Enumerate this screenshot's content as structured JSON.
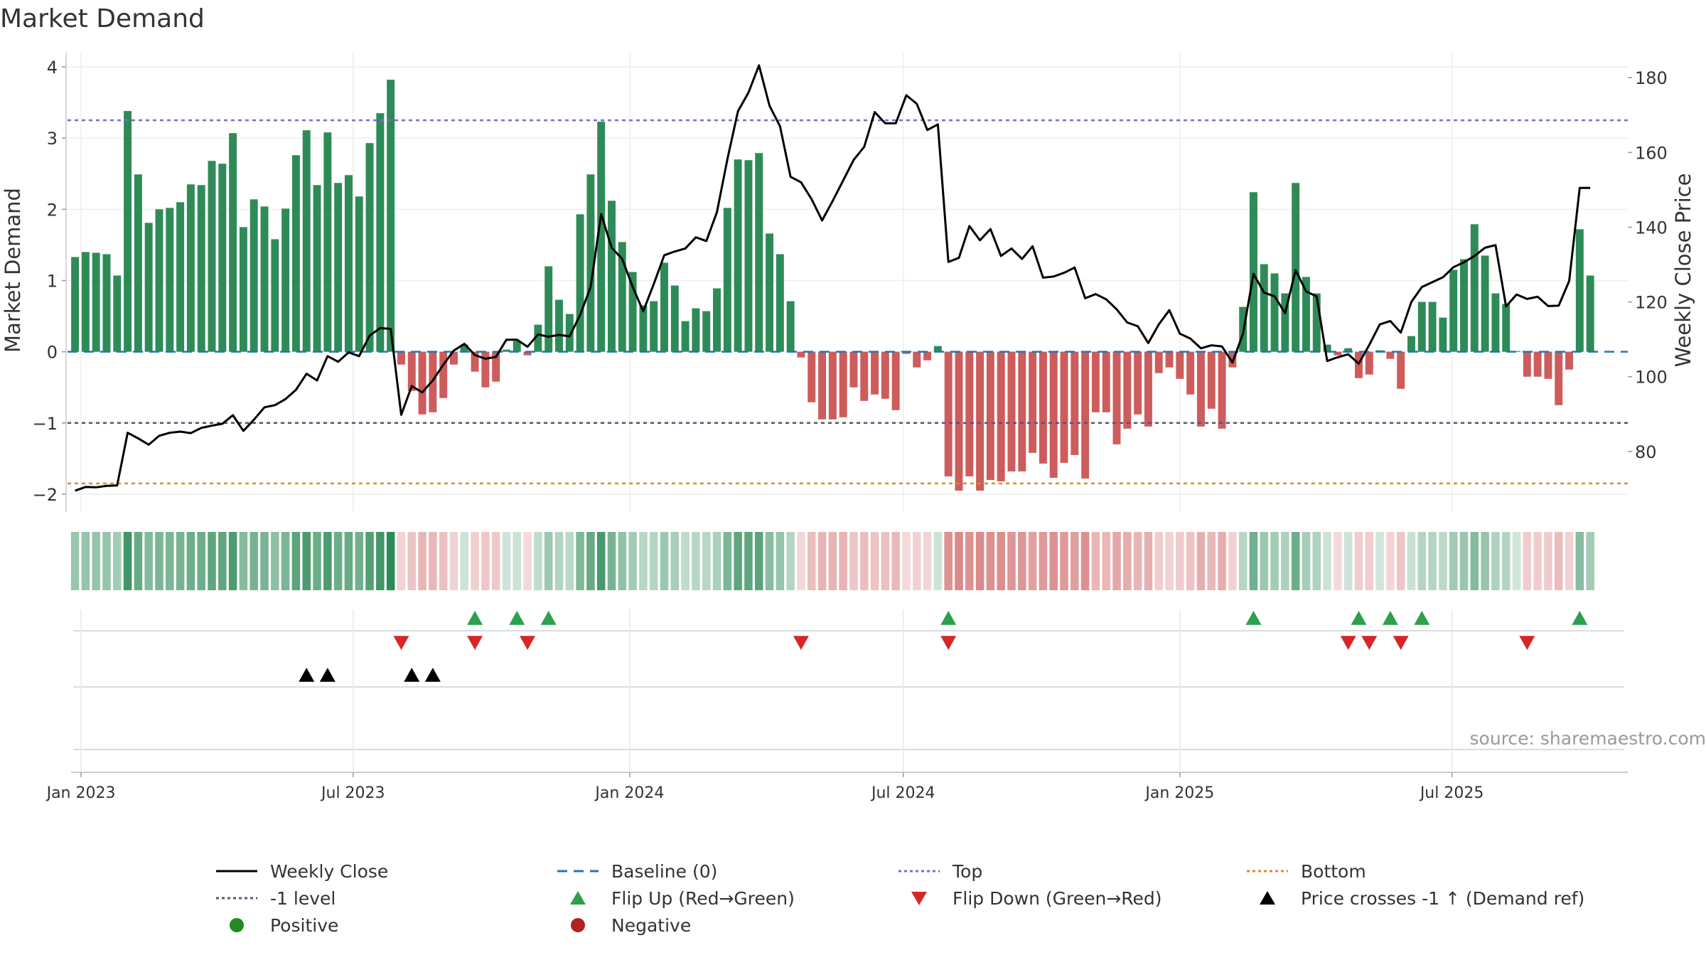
{
  "title": "Market Demand",
  "source": "source: sharemaestro.com",
  "chart_data": {
    "type": "bar",
    "y_left_label": "Market Demand",
    "y_right_label": "Weekly Close Price",
    "y_left_ticks": [
      -2,
      -1,
      0,
      1,
      2,
      3,
      4
    ],
    "y_left_tick_labels": [
      "−2",
      "−1",
      "0",
      "1",
      "2",
      "3",
      "4"
    ],
    "y_left_range": [
      -2.25,
      4.1
    ],
    "y_right_ticks": [
      80,
      100,
      120,
      140,
      160,
      180
    ],
    "y_right_range": [
      63.8,
      184.8
    ],
    "x_ticks": [
      {
        "date": "2023-01-01",
        "label": "Jan 2023"
      },
      {
        "date": "2023-07-01",
        "label": "Jul 2023"
      },
      {
        "date": "2024-01-01",
        "label": "Jan 2024"
      },
      {
        "date": "2024-07-01",
        "label": "Jul 2024"
      },
      {
        "date": "2025-01-01",
        "label": "Jan 2025"
      },
      {
        "date": "2025-07-01",
        "label": "Jul 2025"
      }
    ],
    "x_start": "2022-12-28",
    "week_step_days": 7,
    "x_range": [
      "2022-12-23",
      "2025-10-26"
    ],
    "reference_lines": {
      "top": 3.25,
      "bottom": -1.85,
      "minus_one": -1,
      "baseline": 0
    },
    "demand": [
      1.33,
      1.4,
      1.39,
      1.37,
      1.07,
      3.38,
      2.49,
      1.81,
      2.0,
      2.02,
      2.1,
      2.35,
      2.34,
      2.68,
      2.64,
      3.07,
      1.75,
      2.14,
      2.04,
      1.58,
      2.01,
      2.76,
      3.11,
      2.34,
      3.08,
      2.37,
      2.48,
      2.18,
      2.93,
      3.35,
      3.82,
      -0.18,
      -0.55,
      -0.88,
      -0.85,
      -0.65,
      -0.18,
      0.1,
      -0.28,
      -0.5,
      -0.42,
      0.03,
      0.15,
      -0.05,
      0.38,
      1.2,
      0.73,
      0.53,
      1.93,
      2.49,
      3.23,
      2.12,
      1.54,
      1.12,
      0.65,
      0.71,
      1.25,
      0.93,
      0.43,
      0.61,
      0.57,
      0.89,
      2.02,
      2.7,
      2.69,
      2.79,
      1.66,
      1.37,
      0.71,
      -0.08,
      -0.71,
      -0.95,
      -0.95,
      -0.92,
      -0.5,
      -0.69,
      -0.6,
      -0.66,
      -0.82,
      -0.03,
      -0.22,
      -0.12,
      0.08,
      -1.75,
      -1.95,
      -1.75,
      -1.95,
      -1.8,
      -1.82,
      -1.68,
      -1.68,
      -1.42,
      -1.57,
      -1.77,
      -1.56,
      -1.45,
      -1.78,
      -0.85,
      -0.85,
      -1.3,
      -1.08,
      -0.88,
      -1.05,
      -0.3,
      -0.22,
      -0.38,
      -0.6,
      -1.05,
      -0.8,
      -1.08,
      -0.22,
      0.63,
      2.24,
      1.23,
      1.1,
      0.82,
      2.37,
      1.05,
      0.82,
      0.1,
      -0.05,
      0.05,
      -0.37,
      -0.32,
      0.02,
      -0.1,
      -0.52,
      0.22,
      0.7,
      0.7,
      0.48,
      1.15,
      1.3,
      1.79,
      1.35,
      0.82,
      0.67,
      0.01,
      -0.35,
      -0.35,
      -0.38,
      -0.75,
      -0.25,
      1.72,
      1.07
    ],
    "close": [
      69.5,
      70.5,
      70.4,
      70.8,
      70.9,
      85.0,
      83.5,
      81.8,
      84.2,
      85.0,
      85.3,
      84.9,
      86.3,
      86.9,
      87.4,
      89.7,
      85.5,
      88.5,
      91.8,
      92.4,
      94.0,
      96.5,
      100.8,
      99.0,
      105.5,
      104.0,
      106.5,
      105.5,
      111.0,
      113.0,
      112.8,
      89.8,
      97.5,
      95.8,
      99.0,
      103.2,
      107.0,
      108.8,
      105.8,
      104.8,
      105.3,
      109.9,
      109.9,
      108.0,
      111.3,
      110.7,
      111.2,
      110.8,
      116.5,
      124.0,
      143.5,
      134.5,
      131.5,
      124.0,
      117.5,
      124.8,
      132.5,
      133.5,
      134.3,
      137.3,
      136.3,
      144.0,
      158.2,
      171.0,
      176.0,
      183.3,
      172.5,
      167.0,
      153.5,
      152.0,
      147.5,
      141.8,
      147.0,
      152.5,
      158.0,
      161.5,
      170.8,
      167.8,
      167.8,
      175.3,
      173.0,
      166.0,
      167.5,
      130.7,
      131.8,
      140.3,
      136.5,
      139.5,
      132.3,
      134.3,
      131.5,
      134.9,
      126.5,
      126.8,
      127.8,
      129.2,
      121.0,
      122.1,
      120.7,
      118.0,
      114.5,
      113.5,
      109.0,
      114.0,
      117.8,
      111.5,
      110.2,
      107.6,
      108.4,
      108.1,
      103.8,
      111.5,
      127.5,
      122.5,
      121.5,
      117.0,
      128.5,
      122.8,
      121.5,
      104.2,
      105.2,
      106.0,
      103.5,
      108.5,
      114.0,
      114.9,
      111.8,
      120.0,
      124.0,
      125.3,
      126.6,
      129.3,
      130.6,
      132.3,
      134.5,
      135.2,
      118.8,
      122.0,
      120.8,
      121.4,
      118.9,
      119.0,
      125.6,
      150.5,
      150.5
    ],
    "flip_up_week": [
      38,
      42,
      45,
      83,
      112,
      122,
      125,
      128,
      143
    ],
    "flip_down_week": [
      31,
      38,
      43,
      69,
      83,
      121,
      123,
      126,
      138
    ],
    "price_cross_week": [
      22,
      24,
      32,
      34
    ],
    "legend": [
      {
        "label": "Weekly Close",
        "symbol": "solid-line",
        "color": "#000000"
      },
      {
        "label": "Baseline (0)",
        "symbol": "dashed-line",
        "color": "#1f77b4"
      },
      {
        "label": "Top",
        "symbol": "dotted-line",
        "color": "#7b68d8"
      },
      {
        "label": "Bottom",
        "symbol": "dotted-line",
        "color": "#e08a1e"
      },
      {
        "label": "-1 level",
        "symbol": "dotted-line",
        "color": "#555577"
      },
      {
        "label": "Flip Up (Red→Green)",
        "symbol": "triangle-up",
        "color": "#2ca04c"
      },
      {
        "label": "Flip Down (Green→Red)",
        "symbol": "triangle-down",
        "color": "#d62728"
      },
      {
        "label": "Price crosses -1 ↑ (Demand ref)",
        "symbol": "triangle-up",
        "color": "#000000"
      },
      {
        "label": "Positive",
        "symbol": "circle",
        "color": "#228b22"
      },
      {
        "label": "Negative",
        "symbol": "circle",
        "color": "#b22222"
      }
    ]
  },
  "colors": {
    "positive": "#2e8b57",
    "negative": "#cd5c5c",
    "close": "#000000",
    "baseline": "#1f77b4",
    "top": "#7b68d8",
    "bottom": "#e08a1e",
    "minus_one": "#555577",
    "flip_up": "#2ca04c",
    "flip_down": "#d62728",
    "cross": "#000000",
    "axis": "#cccccc",
    "grid": "#eeeeee"
  }
}
